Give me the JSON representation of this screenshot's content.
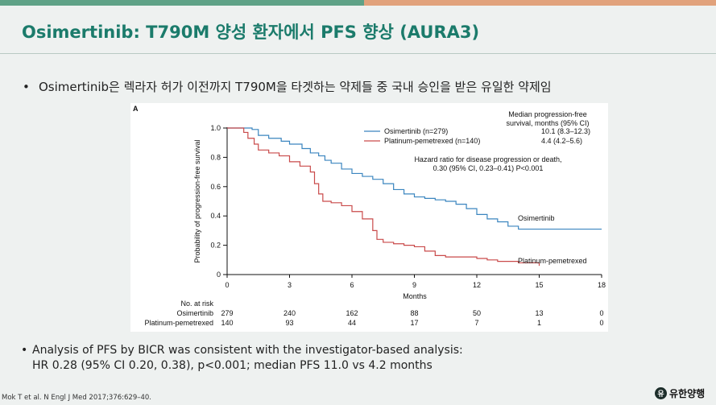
{
  "slide": {
    "title": "Osimertinib: T790M 양성 환자에서 PFS 향상 (AURA3)",
    "bullet1": "Osimertinib은 렉라자 허가 이전까지 T790M을 타겟하는 약제들 중 국내 승인을 받은 유일한 약제임",
    "bullet_dot": "•",
    "bullet2_line1": "Analysis of PFS by BICR was consistent with the investigator-based analysis:",
    "bullet2_line2": "HR 0.28 (95% CI 0.20, 0.38), p<0.001; median PFS 11.0 vs 4.2 months",
    "reference": "Mok T et al. N Engl J Med 2017;376:629–40.",
    "logo_text": "유한양행",
    "logo_mark": "유",
    "colors": {
      "title": "#1b7b6b",
      "bar_left": "#5fa287",
      "bar_right": "#e1a27c"
    }
  },
  "chart_data": {
    "type": "line",
    "panel_label": "A",
    "ylabel": "Probability of progression-free survival",
    "xlabel": "Months",
    "xlim": [
      0,
      18
    ],
    "ylim": [
      0,
      1.0
    ],
    "x_ticks": [
      "0",
      "3",
      "6",
      "9",
      "12",
      "15",
      "18"
    ],
    "y_ticks": [
      "0",
      "0.2",
      "0.4",
      "0.6",
      "0.8",
      "1.0"
    ],
    "median_header": "Median progression-free",
    "median_header2": "survival, months (95% CI)",
    "hr_line1": "Hazard ratio for disease progression or death,",
    "hr_line2": "0.30 (95% CI, 0.23–0.41) P<0.001",
    "series": [
      {
        "name": "Osimertinib (n=279)",
        "median": "10.1 (8.3–12.3)",
        "end_label": "Osimertinib",
        "color": "#3a85bf",
        "x": [
          0,
          1.2,
          1.5,
          2.0,
          2.6,
          3.0,
          3.6,
          4.0,
          4.4,
          4.7,
          5.0,
          5.5,
          6.0,
          6.5,
          7.0,
          7.5,
          8.0,
          8.5,
          9.0,
          9.5,
          10.0,
          10.5,
          11.0,
          11.5,
          12.0,
          12.5,
          13.0,
          13.5,
          14.0,
          15.0,
          16.0,
          18.0
        ],
        "y": [
          1.0,
          0.99,
          0.95,
          0.93,
          0.91,
          0.89,
          0.86,
          0.83,
          0.81,
          0.78,
          0.76,
          0.72,
          0.69,
          0.67,
          0.65,
          0.62,
          0.58,
          0.55,
          0.53,
          0.52,
          0.51,
          0.5,
          0.48,
          0.45,
          0.41,
          0.38,
          0.36,
          0.33,
          0.31,
          0.31,
          0.31,
          0.31
        ]
      },
      {
        "name": "Platinum-pemetrexed (n=140)",
        "median": "4.4 (4.2–5.6)",
        "end_label": "Platinum-pemetrexed",
        "color": "#c94a4a",
        "x": [
          0,
          0.8,
          1.0,
          1.3,
          1.5,
          2.0,
          2.5,
          3.0,
          3.5,
          4.0,
          4.2,
          4.4,
          4.6,
          5.0,
          5.5,
          6.0,
          6.5,
          7.0,
          7.2,
          7.5,
          8.0,
          8.5,
          9.0,
          9.5,
          10.0,
          10.5,
          11.0,
          12.0,
          12.5,
          13.0,
          14.0,
          15.0
        ],
        "y": [
          1.0,
          0.97,
          0.93,
          0.89,
          0.85,
          0.83,
          0.81,
          0.77,
          0.74,
          0.7,
          0.62,
          0.55,
          0.5,
          0.49,
          0.47,
          0.43,
          0.38,
          0.3,
          0.24,
          0.22,
          0.21,
          0.2,
          0.19,
          0.16,
          0.13,
          0.12,
          0.12,
          0.11,
          0.1,
          0.09,
          0.08,
          0.06
        ]
      }
    ],
    "at_risk": {
      "header": "No. at risk",
      "rows": [
        {
          "label": "Osimertinib",
          "values": [
            "279",
            "240",
            "162",
            "88",
            "50",
            "13",
            "0"
          ]
        },
        {
          "label": "Platinum-pemetrexed",
          "values": [
            "140",
            "93",
            "44",
            "17",
            "7",
            "1",
            "0"
          ]
        }
      ]
    }
  }
}
